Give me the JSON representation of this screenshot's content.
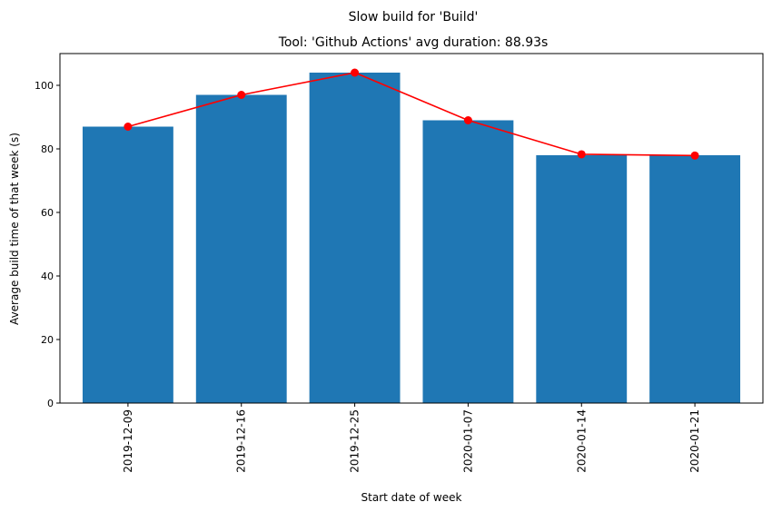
{
  "chart_data": {
    "type": "bar",
    "suptitle": "Slow build for 'Build'",
    "title": "Tool: 'Github Actions' avg duration: 88.93s",
    "xlabel": "Start date of week",
    "ylabel": "Average build time of that week (s)",
    "categories": [
      "2019-12-09",
      "2019-12-16",
      "2019-12-25",
      "2020-01-07",
      "2020-01-14",
      "2020-01-21"
    ],
    "series": [
      {
        "type": "bar",
        "values": [
          87,
          97,
          104,
          89,
          78,
          78
        ],
        "color": "#1f77b4"
      },
      {
        "type": "line",
        "values": [
          87,
          97,
          104,
          89,
          78.3,
          77.9
        ],
        "color": "#ff0000",
        "marker": "circle"
      }
    ],
    "ylim": [
      0,
      110
    ],
    "yticks": [
      0,
      20,
      40,
      60,
      80,
      100
    ],
    "grid": false,
    "legend": "none"
  }
}
